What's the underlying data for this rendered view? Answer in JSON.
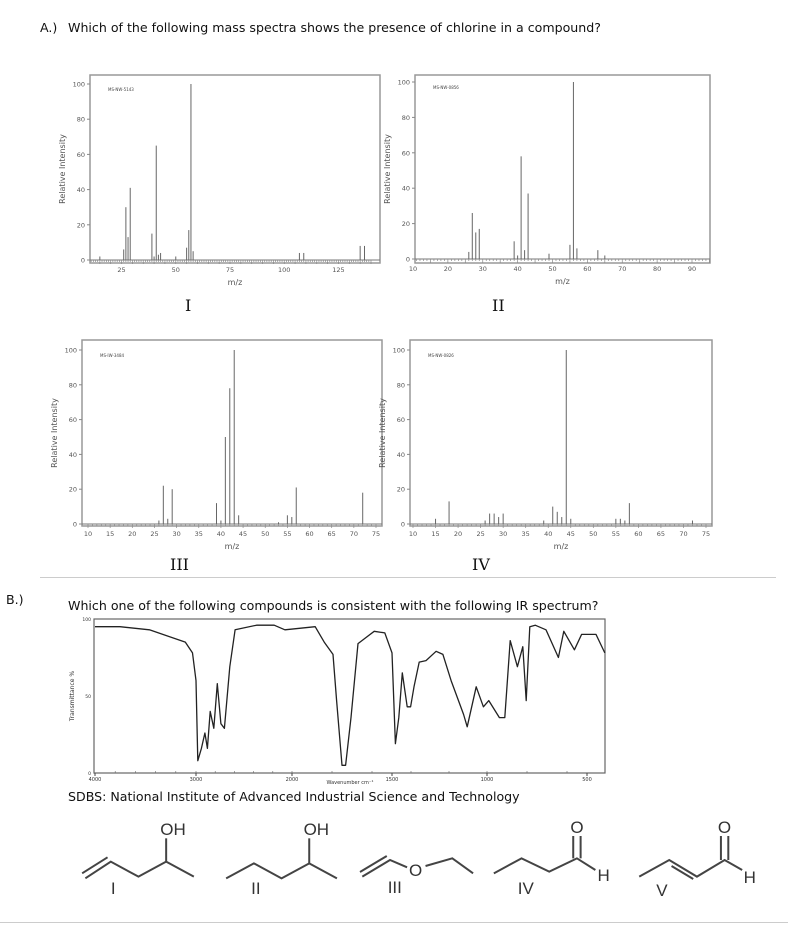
{
  "part_a": {
    "label": "A.)",
    "question": "Which of the following mass spectra shows the presence of chlorine in a compound?"
  },
  "part_b": {
    "label": "B.)",
    "question": "Which one of the following compounds is consistent with the following IR spectrum?",
    "source": "SDBS: National Institute of Advanced Industrial Science and Technology",
    "compounds": [
      {
        "numeral": "I",
        "groups": [
          "OH"
        ]
      },
      {
        "numeral": "II",
        "groups": [
          "OH"
        ]
      },
      {
        "numeral": "III",
        "groups": [
          "O"
        ]
      },
      {
        "numeral": "IV",
        "groups": [
          "O",
          "H"
        ]
      },
      {
        "numeral": "V",
        "groups": [
          "O",
          "H"
        ]
      }
    ]
  },
  "chart_data": [
    {
      "type": "bar",
      "label": "I",
      "id_text": "MS-NW-5143",
      "xlabel": "m/z",
      "ylabel": "Relative Intensity",
      "xlim": [
        10,
        140
      ],
      "ylim": [
        0,
        100
      ],
      "xticks": [
        25,
        50,
        75,
        100,
        125
      ],
      "yticks": [
        0,
        20,
        40,
        60,
        80,
        100
      ],
      "peaks": [
        [
          15,
          2
        ],
        [
          26,
          6
        ],
        [
          27,
          30
        ],
        [
          28,
          13
        ],
        [
          29,
          41
        ],
        [
          39,
          15
        ],
        [
          40,
          2
        ],
        [
          41,
          65
        ],
        [
          42,
          3
        ],
        [
          43,
          4
        ],
        [
          50,
          2
        ],
        [
          55,
          7
        ],
        [
          56,
          17
        ],
        [
          57,
          100
        ],
        [
          58,
          5
        ],
        [
          107,
          4
        ],
        [
          109,
          4
        ],
        [
          135,
          8
        ],
        [
          137,
          8
        ]
      ]
    },
    {
      "type": "bar",
      "label": "II",
      "id_text": "MS-NW-0856",
      "xlabel": "m/z",
      "ylabel": "Relative Intensity",
      "xlim": [
        10,
        95
      ],
      "ylim": [
        0,
        100
      ],
      "xticks": [
        10,
        20,
        30,
        40,
        50,
        60,
        70,
        80,
        90
      ],
      "yticks": [
        0,
        20,
        40,
        60,
        80,
        100
      ],
      "peaks": [
        [
          26,
          4
        ],
        [
          27,
          26
        ],
        [
          28,
          15
        ],
        [
          29,
          17
        ],
        [
          39,
          10
        ],
        [
          40,
          2
        ],
        [
          41,
          58
        ],
        [
          42,
          5
        ],
        [
          43,
          37
        ],
        [
          49,
          3
        ],
        [
          55,
          8
        ],
        [
          56,
          100
        ],
        [
          57,
          6
        ],
        [
          63,
          5
        ],
        [
          65,
          2
        ]
      ]
    },
    {
      "type": "bar",
      "label": "III",
      "id_text": "MS-IW-3484",
      "xlabel": "m/z",
      "ylabel": "Relative Intensity",
      "xlim": [
        10,
        75
      ],
      "ylim": [
        0,
        100
      ],
      "xticks": [
        10,
        15,
        20,
        25,
        30,
        35,
        40,
        45,
        50,
        55,
        60,
        65,
        70,
        75
      ],
      "yticks": [
        0,
        20,
        40,
        60,
        80,
        100
      ],
      "peaks": [
        [
          26,
          2
        ],
        [
          27,
          22
        ],
        [
          28,
          3
        ],
        [
          29,
          20
        ],
        [
          39,
          12
        ],
        [
          40,
          2
        ],
        [
          41,
          50
        ],
        [
          42,
          78
        ],
        [
          43,
          100
        ],
        [
          44,
          5
        ],
        [
          53,
          1
        ],
        [
          55,
          5
        ],
        [
          56,
          4
        ],
        [
          57,
          21
        ],
        [
          72,
          18
        ]
      ]
    },
    {
      "type": "bar",
      "label": "IV",
      "id_text": "MS-NW-0826",
      "xlabel": "m/z",
      "ylabel": "Relative Intensity",
      "xlim": [
        10,
        75
      ],
      "ylim": [
        0,
        100
      ],
      "xticks": [
        10,
        15,
        20,
        25,
        30,
        35,
        40,
        45,
        50,
        55,
        60,
        65,
        70,
        75
      ],
      "yticks": [
        0,
        20,
        40,
        60,
        80,
        100
      ],
      "peaks": [
        [
          15,
          3
        ],
        [
          18,
          13
        ],
        [
          26,
          2
        ],
        [
          27,
          6
        ],
        [
          28,
          6
        ],
        [
          29,
          4
        ],
        [
          30,
          6
        ],
        [
          39,
          2
        ],
        [
          41,
          10
        ],
        [
          42,
          7
        ],
        [
          43,
          4
        ],
        [
          44,
          100
        ],
        [
          45,
          3
        ],
        [
          55,
          3
        ],
        [
          56,
          3
        ],
        [
          57,
          2
        ],
        [
          58,
          12
        ],
        [
          72,
          2
        ]
      ]
    },
    {
      "type": "line",
      "xlabel": "Wavenumber cm⁻¹",
      "ylabel": "Transmittance %",
      "xticks": [
        4000,
        3000,
        2000,
        1500,
        1000,
        500
      ],
      "yticks": [
        0,
        50,
        100
      ],
      "ylim": [
        0,
        100
      ],
      "points": [
        [
          4000,
          95
        ],
        [
          3752,
          95
        ],
        [
          3461,
          93
        ],
        [
          3106,
          85
        ],
        [
          3035,
          78
        ],
        [
          3000,
          60
        ],
        [
          2981,
          8
        ],
        [
          2944,
          16
        ],
        [
          2907,
          26
        ],
        [
          2881,
          16
        ],
        [
          2852,
          40
        ],
        [
          2815,
          29
        ],
        [
          2778,
          58
        ],
        [
          2741,
          32
        ],
        [
          2704,
          29
        ],
        [
          2648,
          69
        ],
        [
          2593,
          93
        ],
        [
          2370,
          96
        ],
        [
          2185,
          96
        ],
        [
          2074,
          93
        ],
        [
          1884,
          95
        ],
        [
          1839,
          85
        ],
        [
          1795,
          77
        ],
        [
          1777,
          47
        ],
        [
          1750,
          5
        ],
        [
          1732,
          5
        ],
        [
          1705,
          36
        ],
        [
          1670,
          84
        ],
        [
          1589,
          92
        ],
        [
          1536,
          91
        ],
        [
          1500,
          78
        ],
        [
          1482,
          19
        ],
        [
          1464,
          36
        ],
        [
          1446,
          65
        ],
        [
          1420,
          43
        ],
        [
          1402,
          43
        ],
        [
          1384,
          56
        ],
        [
          1357,
          72
        ],
        [
          1321,
          73
        ],
        [
          1268,
          79
        ],
        [
          1232,
          77
        ],
        [
          1189,
          60
        ],
        [
          1123,
          38
        ],
        [
          1104,
          30
        ],
        [
          1057,
          56
        ],
        [
          1019,
          43
        ],
        [
          991,
          47
        ],
        [
          938,
          36
        ],
        [
          911,
          36
        ],
        [
          884,
          86
        ],
        [
          848,
          69
        ],
        [
          821,
          82
        ],
        [
          804,
          47
        ],
        [
          786,
          95
        ],
        [
          759,
          96
        ],
        [
          705,
          93
        ],
        [
          643,
          75
        ],
        [
          616,
          92
        ],
        [
          563,
          80
        ],
        [
          527,
          90
        ],
        [
          455,
          90
        ],
        [
          411,
          78
        ]
      ]
    }
  ]
}
